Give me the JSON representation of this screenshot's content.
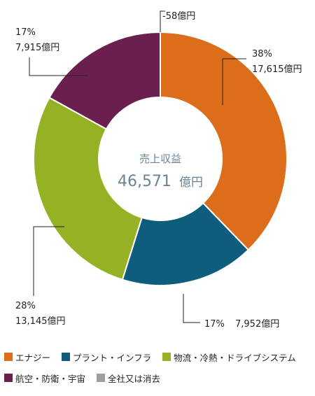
{
  "chart_data": {
    "type": "pie",
    "variant": "donut",
    "center_title": "売上収益",
    "center_value": "46,571",
    "center_unit": "億円",
    "slices": [
      {
        "name": "エナジー",
        "value": 17615,
        "percent_label": "38%",
        "value_label": "17,615億円",
        "color": "#dc6d1b"
      },
      {
        "name": "プラント・インフラ",
        "value": 7952,
        "percent_label": "17%",
        "value_label": "7,952億円",
        "color": "#0f5d7c"
      },
      {
        "name": "物流・冷熱・ドライブシステム",
        "value": 13145,
        "percent_label": "28%",
        "value_label": "13,145億円",
        "color": "#95b224"
      },
      {
        "name": "航空・防衛・宇宙",
        "value": 7915,
        "percent_label": "17%",
        "value_label": "7,915億円",
        "color": "#6b1f4e"
      },
      {
        "name": "全社又は消去",
        "value": -58,
        "percent_label": "",
        "value_label": "-58億円",
        "color": "#9e9e9e"
      }
    ],
    "legend_rows": [
      [
        "エナジー",
        "プラント・インフラ",
        "物流・冷熱・ドライブシステム"
      ],
      [
        "航空・防衛・宇宙",
        "全社又は消去"
      ]
    ]
  }
}
